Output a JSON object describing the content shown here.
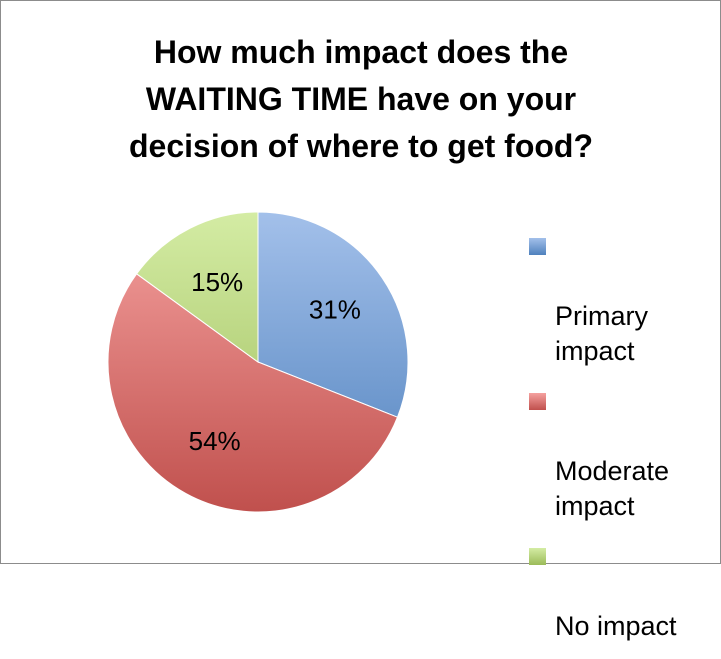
{
  "chart_data": {
    "type": "pie",
    "title": "How much impact does the\nWAITING TIME have on your\ndecision of where to get food?",
    "slices": [
      {
        "label": "Primary\nimpact",
        "value": 31,
        "display": "31%",
        "color": "#4f81bd",
        "color_light": "#a3c0ea"
      },
      {
        "label": "Moderate\nimpact",
        "value": 54,
        "display": "54%",
        "color": "#c0504d",
        "color_light": "#f5a19f"
      },
      {
        "label": "No impact",
        "value": 15,
        "display": "15%",
        "color": "#9bbb59",
        "color_light": "#d4eca4"
      }
    ],
    "legend_position": "right",
    "start_angle": "12 o'clock",
    "direction": "clockwise"
  }
}
